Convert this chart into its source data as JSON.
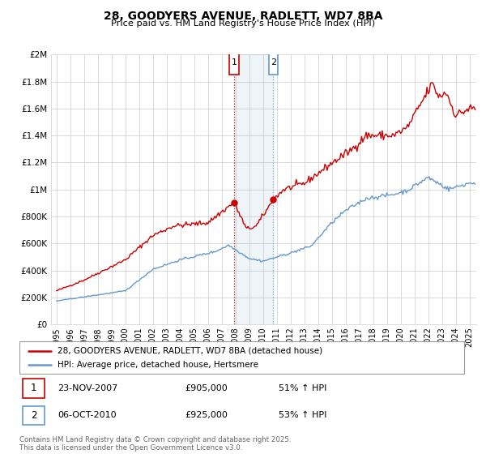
{
  "title": "28, GOODYERS AVENUE, RADLETT, WD7 8BA",
  "subtitle": "Price paid vs. HM Land Registry's House Price Index (HPI)",
  "legend_line1": "28, GOODYERS AVENUE, RADLETT, WD7 8BA (detached house)",
  "legend_line2": "HPI: Average price, detached house, Hertsmere",
  "transaction1_date": "23-NOV-2007",
  "transaction1_price": "£905,000",
  "transaction1_hpi": "51% ↑ HPI",
  "transaction2_date": "06-OCT-2010",
  "transaction2_price": "£925,000",
  "transaction2_hpi": "53% ↑ HPI",
  "footer": "Contains HM Land Registry data © Crown copyright and database right 2025.\nThis data is licensed under the Open Government Licence v3.0.",
  "red_color": "#cc0000",
  "blue_color": "#6699cc",
  "marker1_year": 2007.9,
  "marker2_year": 2010.75,
  "ylim_max": 2000000,
  "yticks": [
    0,
    200000,
    400000,
    600000,
    800000,
    1000000,
    1200000,
    1400000,
    1600000,
    1800000,
    2000000
  ],
  "ytick_labels": [
    "£0",
    "£200K",
    "£400K",
    "£600K",
    "£800K",
    "£1M",
    "£1.2M",
    "£1.4M",
    "£1.6M",
    "£1.8M",
    "£2M"
  ],
  "xstart": 1995,
  "xend": 2025
}
